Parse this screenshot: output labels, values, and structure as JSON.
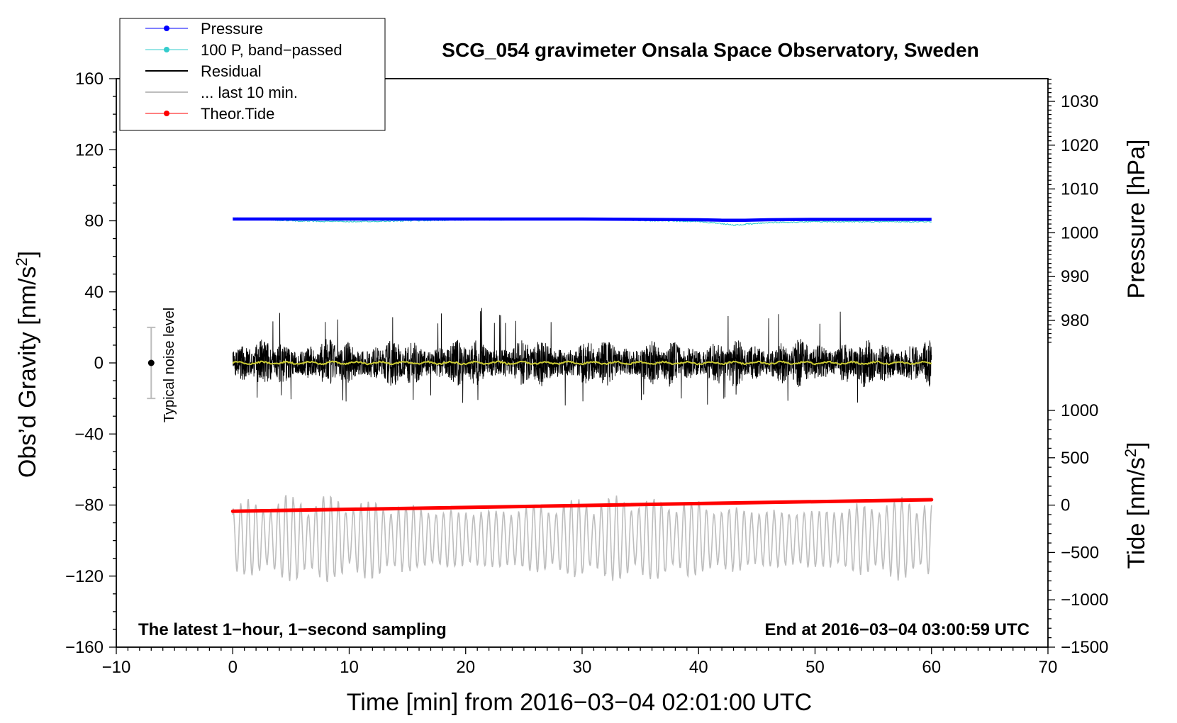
{
  "chart_data": {
    "type": "line",
    "title": "SCG_054 gravimeter Onsala Space Observatory, Sweden",
    "xlabel": "Time [min] from 2016−03−04 02:01:00 UTC",
    "ylabel_left": "Obs’d Gravity [nm/s",
    "ylabel_left_sup": "2",
    "ylabel_left_close": "]",
    "ylabel_right_pressure": "Pressure [hPa]",
    "ylabel_right_tide": "Tide [nm/s",
    "ylabel_right_tide_sup": "2",
    "ylabel_right_tide_close": "]",
    "xlim": [
      -10,
      70
    ],
    "ylim": [
      -160,
      160
    ],
    "x_ticks": [
      -10,
      0,
      10,
      20,
      30,
      40,
      50,
      60,
      70
    ],
    "x_tick_labels": [
      "−10",
      "0",
      "10",
      "20",
      "30",
      "40",
      "50",
      "60",
      "70"
    ],
    "y_ticks": [
      -160,
      -120,
      -80,
      -40,
      0,
      40,
      80,
      120,
      160
    ],
    "y_tick_labels": [
      "−160",
      "−120",
      "−80",
      "−40",
      "0",
      "40",
      "80",
      "120",
      "160"
    ],
    "pressure_axis": {
      "range": [
        975,
        1035
      ],
      "ticks": [
        980,
        990,
        1000,
        1010,
        1020,
        1030
      ],
      "tick_labels": [
        "980",
        "990",
        "1000",
        "1010",
        "1020",
        "1030"
      ]
    },
    "tide_axis": {
      "range": [
        -1500,
        1000
      ],
      "ticks": [
        -1500,
        -1000,
        -500,
        0,
        500,
        1000
      ],
      "tick_labels": [
        "−1500",
        "−1000",
        "−500",
        "0",
        "500",
        "1000"
      ]
    },
    "legend": {
      "placement": "top-left",
      "entries": [
        {
          "label": "Pressure",
          "color": "#0000ff",
          "marker": true
        },
        {
          "label": "100 P, band−passed",
          "color": "#33cccc",
          "marker": true
        },
        {
          "label": "Residual",
          "color": "#000000",
          "marker": false
        },
        {
          "label": "... last 10 min.",
          "color": "#bdbdbd",
          "marker": false
        },
        {
          "label": "Theor.Tide",
          "color": "#ff0000",
          "marker": true
        }
      ]
    },
    "series": [
      {
        "name": "Pressure",
        "color": "#0000ff",
        "x": [
          0,
          10,
          20,
          30,
          40,
          42,
          44,
          46,
          50,
          60
        ],
        "y": [
          81,
          81,
          81,
          81,
          80.6,
          80.3,
          80.3,
          80.6,
          80.8,
          80.8
        ]
      },
      {
        "name": "100 P, band−passed",
        "color": "#33cccc",
        "x": [
          0,
          5,
          10,
          20,
          30,
          40,
          42,
          43,
          44,
          46,
          50,
          60
        ],
        "y": [
          81.5,
          80,
          79.5,
          80.5,
          81,
          79.5,
          78.5,
          77.5,
          78,
          79,
          79.5,
          79.5
        ]
      },
      {
        "name": "Residual",
        "color": "#000000",
        "x_range": [
          0,
          60
        ],
        "amplitude_range": [
          -28,
          35
        ],
        "note": "1-second noisy signal centred on 0"
      },
      {
        "name": "Residual smoothed",
        "color": "#cccc33",
        "x_range": [
          0,
          60
        ],
        "y": 0
      },
      {
        "name": "... last 10 min.",
        "color": "#bdbdbd",
        "x_range": [
          0,
          60
        ],
        "amplitude_range": [
          -125,
          -73
        ],
        "note": "oscillating trace centred near -98"
      },
      {
        "name": "Theor.Tide",
        "color": "#ff0000",
        "x": [
          0,
          60
        ],
        "y": [
          -83.5,
          -77
        ]
      }
    ],
    "noise_bar": {
      "label": "Typical noise level",
      "x": -7,
      "center": 0,
      "low": -20,
      "high": 20
    },
    "annotations": {
      "left": "The latest 1−hour, 1−second sampling",
      "right": "End at 2016−03−04 03:00:59 UTC"
    },
    "grid": false
  }
}
